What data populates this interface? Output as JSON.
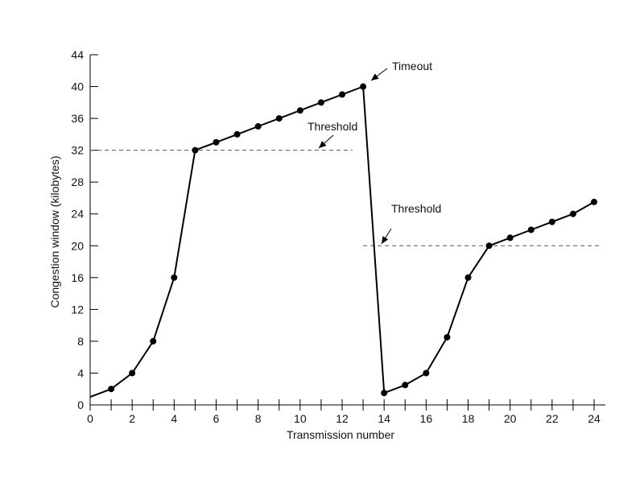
{
  "chart_data": {
    "type": "line",
    "title": "",
    "xlabel": "Transmission number",
    "ylabel": "Congestion window (kilobytes)",
    "xlim": [
      0,
      24
    ],
    "ylim": [
      0,
      44
    ],
    "x_ticks": [
      "0",
      "2",
      "4",
      "6",
      "8",
      "10",
      "12",
      "14",
      "16",
      "18",
      "20",
      "22",
      "24"
    ],
    "y_ticks": [
      "0",
      "4",
      "8",
      "12",
      "16",
      "20",
      "24",
      "28",
      "32",
      "36",
      "40",
      "44"
    ],
    "grid": false,
    "series": [
      {
        "x": [
          0,
          1,
          2,
          3,
          4,
          5,
          6,
          7,
          8,
          9,
          10,
          11,
          12,
          13,
          14,
          15,
          16,
          17,
          18,
          19,
          20,
          21,
          22,
          23,
          24
        ],
        "y": [
          1,
          2,
          4,
          8,
          16,
          32,
          33,
          34,
          35,
          36,
          37,
          38,
          39,
          40,
          1.5,
          2.5,
          4,
          8.5,
          16,
          20,
          21,
          22,
          23,
          24,
          25.5
        ],
        "markers": [
          false,
          true,
          true,
          true,
          true,
          true,
          true,
          true,
          true,
          true,
          true,
          true,
          true,
          true,
          true,
          true,
          true,
          true,
          true,
          true,
          true,
          true,
          true,
          true,
          true
        ]
      }
    ],
    "thresholds": [
      {
        "label": "Threshold",
        "y": 32,
        "x_start": 0,
        "x_end": 12.5
      },
      {
        "label": "Threshold",
        "y": 20,
        "x_start": 13,
        "x_end": 24.4
      }
    ],
    "annotations": [
      {
        "label": "Timeout"
      }
    ],
    "colors": {
      "line": "#000000",
      "threshold": "#555555"
    }
  }
}
